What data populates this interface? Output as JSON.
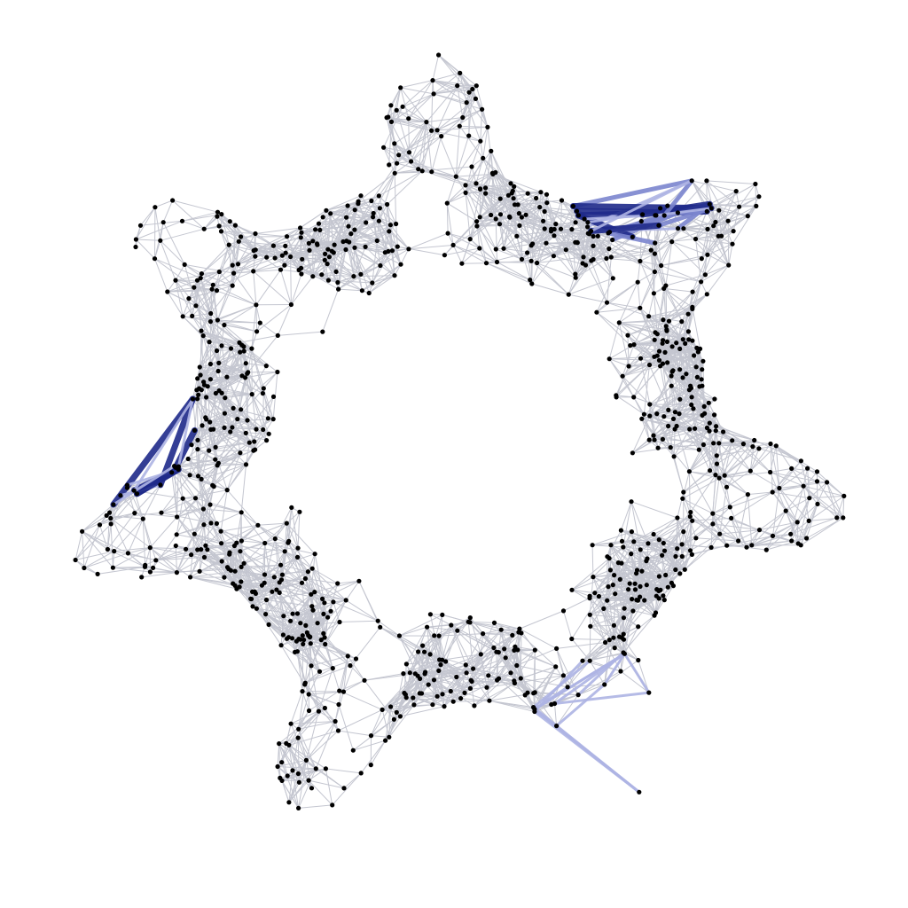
{
  "graph": {
    "layout_shape": "gear",
    "lobe_count": 7,
    "colors": {
      "background": "#ffffff",
      "edge_default": "#c4c6d0",
      "node": "#000000",
      "highlight_light": "#aeb4e4",
      "highlight_medium": "#7c86cf",
      "highlight_dark": "#1f2a8a"
    },
    "highlighted_gaps": [
      "upper-right",
      "left",
      "bottom-right"
    ]
  }
}
